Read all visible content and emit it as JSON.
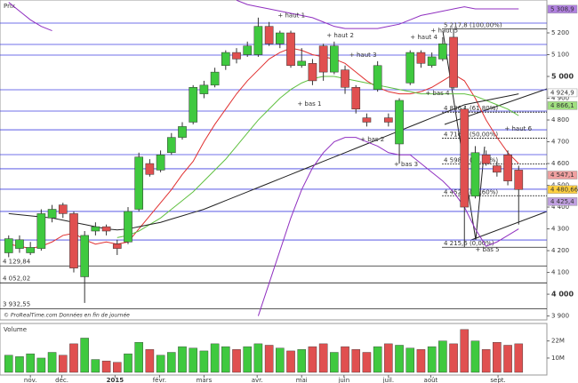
{
  "chart_data": [
    {
      "type": "candlestick",
      "title": "Prix",
      "footer": "© ProRealTime.com  Données en fin de journée",
      "up_color": "#3fc93f",
      "down_color": "#e05050",
      "xlim": [
        -0.8,
        49.6
      ],
      "ylim": [
        3882,
        5351
      ],
      "xticks": [
        {
          "value": 2.0,
          "label": "nov."
        },
        {
          "value": 4.9,
          "label": "déc."
        },
        {
          "value": 9.8,
          "label": "2015"
        },
        {
          "value": 13.9,
          "label": "févr."
        },
        {
          "value": 18.0,
          "label": "mars"
        },
        {
          "value": 22.9,
          "label": "avr."
        },
        {
          "value": 27.0,
          "label": "mai"
        },
        {
          "value": 30.9,
          "label": "juin"
        },
        {
          "value": 35.0,
          "label": "juil."
        },
        {
          "value": 38.9,
          "label": "août"
        },
        {
          "value": 45.1,
          "label": "sept."
        }
      ],
      "yticks": [
        {
          "value": 5200,
          "label": "5 200"
        },
        {
          "value": 5100,
          "label": "5 100"
        },
        {
          "value": 5000,
          "label": "5 000"
        },
        {
          "value": 4900,
          "label": "4 900"
        },
        {
          "value": 4800,
          "label": "4 800"
        },
        {
          "value": 4700,
          "label": "4 700"
        },
        {
          "value": 4600,
          "label": "4 600"
        },
        {
          "value": 4500,
          "label": "4 500"
        },
        {
          "value": 4400,
          "label": "4 400"
        },
        {
          "value": 4300,
          "label": "4 300"
        },
        {
          "value": 4200,
          "label": "4 200"
        },
        {
          "value": 4100,
          "label": "4 100"
        },
        {
          "value": 4000,
          "label": "4 000"
        },
        {
          "value": 3900,
          "label": "3 900"
        }
      ],
      "open": [
        4190,
        4210,
        4190,
        4210,
        4350,
        4410,
        4370,
        4080,
        4290,
        4310,
        4230,
        4240,
        4390,
        4600,
        4570,
        4650,
        4720,
        4790,
        4920,
        4960,
        5050,
        5110,
        5100,
        5100,
        5230,
        5150,
        5200,
        5050,
        5060,
        5140,
        5020,
        5030,
        4950,
        4810,
        4940,
        4810,
        4690,
        4970,
        5110,
        5050,
        5080,
        5180,
        4850,
        4450,
        4640,
        4590,
        4640,
        4570
      ],
      "high": [
        4270,
        4270,
        4240,
        4390,
        4410,
        4420,
        4380,
        4290,
        4330,
        4320,
        4250,
        4400,
        4650,
        4620,
        4660,
        4740,
        4790,
        4960,
        4980,
        5040,
        5120,
        5130,
        5160,
        5270,
        5250,
        5210,
        5210,
        5130,
        5080,
        5150,
        5160,
        5050,
        4960,
        4830,
        5070,
        4830,
        4900,
        5120,
        5120,
        5110,
        5180,
        5217.8,
        4860,
        4680,
        4660,
        4610,
        4660,
        4590
      ],
      "low": [
        4170,
        4190,
        4180,
        4200,
        4330,
        4350,
        4100,
        3960,
        4270,
        4270,
        4180,
        4230,
        4380,
        4540,
        4560,
        4640,
        4710,
        4780,
        4900,
        4950,
        5030,
        5060,
        5090,
        5090,
        5140,
        5130,
        5040,
        5040,
        4960,
        4980,
        5010,
        4920,
        4830,
        4770,
        4930,
        4770,
        4600,
        4960,
        5040,
        5040,
        5070,
        4940,
        4215.6,
        4440,
        4590,
        4540,
        4500,
        4320
      ],
      "close": [
        4255,
        4250,
        4215,
        4370,
        4390,
        4370,
        4120,
        4270,
        4310,
        4290,
        4210,
        4380,
        4630,
        4550,
        4640,
        4720,
        4770,
        4950,
        4960,
        5020,
        5110,
        5080,
        5140,
        5230,
        5150,
        5200,
        5050,
        5070,
        4980,
        5020,
        5140,
        4950,
        4850,
        4790,
        5050,
        4790,
        4890,
        5110,
        5060,
        5090,
        5150,
        4950,
        4400,
        4650,
        4600,
        4560,
        4520,
        4480.66
      ],
      "series": [
        {
          "color": "#e03030",
          "values": [
            4230,
            4220,
            4210,
            4220,
            4240,
            4270,
            4280,
            4250,
            4230,
            4240,
            4230,
            4240,
            4300,
            4360,
            4420,
            4480,
            4550,
            4610,
            4700,
            4780,
            4850,
            4920,
            4980,
            5030,
            5080,
            5110,
            5130,
            5120,
            5100,
            5090,
            5080,
            5060,
            5020,
            4980,
            4950,
            4930,
            4920,
            4920,
            4930,
            4950,
            4980,
            5010,
            4980,
            4900,
            4800,
            4720,
            4650,
            4600
          ]
        },
        {
          "color": "#60c040",
          "values": [
            null,
            null,
            null,
            null,
            null,
            null,
            null,
            null,
            null,
            null,
            4260,
            4270,
            4290,
            4320,
            4350,
            4390,
            4430,
            4470,
            4520,
            4570,
            4620,
            4680,
            4740,
            4800,
            4850,
            4900,
            4940,
            4970,
            4990,
            5000,
            5000,
            4990,
            4980,
            4970,
            4960,
            4950,
            4940,
            4930,
            4920,
            4920,
            4920,
            4920,
            4920,
            4910,
            4890,
            4870,
            4850,
            4820
          ]
        },
        {
          "color": "#222222",
          "values": [
            4370,
            4365,
            4360,
            4355,
            4350,
            4340,
            4330,
            4320,
            4310,
            4300,
            4295,
            4300,
            4310,
            4320,
            4330,
            4345,
            4360,
            4375,
            4390,
            4410,
            4430,
            4450,
            4470,
            4490,
            4510,
            4530,
            4550,
            4570,
            4590,
            4610,
            4630,
            4650,
            4670,
            4690,
            4710,
            4730,
            4750,
            4770,
            4790,
            4810,
            4830,
            4850,
            4870,
            4880,
            4890,
            4900,
            4910,
            4920
          ]
        },
        {
          "color": "#9030c0",
          "values": [
            5340,
            5300,
            5260,
            5230,
            5210,
            null,
            null,
            null,
            null,
            null,
            null,
            null,
            null,
            null,
            null,
            null,
            null,
            null,
            null,
            null,
            null,
            5350,
            5330,
            5320,
            5310,
            5300,
            5290,
            5280,
            5270,
            5250,
            5230,
            5220,
            5220,
            5220,
            5220,
            5230,
            5240,
            5260,
            5280,
            5290,
            5300,
            5310,
            5320,
            5310,
            5310,
            5310,
            5310,
            5310
          ]
        },
        {
          "color": "#9030c0",
          "values": [
            null,
            null,
            null,
            null,
            null,
            null,
            null,
            null,
            null,
            null,
            null,
            null,
            null,
            null,
            null,
            null,
            null,
            null,
            null,
            null,
            null,
            null,
            null,
            3900,
            4050,
            4200,
            4350,
            4480,
            4580,
            4650,
            4700,
            4720,
            4720,
            4700,
            4680,
            4650,
            4640,
            4640,
            4600,
            4560,
            4520,
            4470,
            4400,
            4300,
            4220,
            4240,
            4270,
            4300
          ]
        }
      ],
      "levels": [
        5245,
        5147,
        5098,
        4939,
        4841,
        4755,
        4641,
        4576,
        4482,
        4380,
        4249
      ],
      "supports": [
        {
          "value": 4129.84,
          "label": "4 129,84"
        },
        {
          "value": 4052.02,
          "label": "4 052,02"
        },
        {
          "value": 3932.55,
          "label": "3 932,55"
        }
      ],
      "fibonacci": [
        {
          "value": 5217.8,
          "label": "5 217,8 (100,00%)"
        },
        {
          "value": 4836.1,
          "label": "4 836,1 (61,80%)"
        },
        {
          "value": 4716.2,
          "label": "4 716,2 (50,00%)"
        },
        {
          "value": 4598.5,
          "label": "4 598,5 (38,20%)"
        },
        {
          "value": 4452.2,
          "label": "4 452,2 (23,60%)"
        },
        {
          "value": 4215.6,
          "label": "4 215,6 (0,00%)"
        }
      ],
      "markers": [
        {
          "value": 5308.9,
          "label": "5 308,9",
          "color": "#b080e0"
        },
        {
          "value": 4924.9,
          "label": "4 924,9",
          "color": "#ffffff"
        },
        {
          "value": 4866.1,
          "label": "4 866,1",
          "color": "#a0e080"
        },
        {
          "value": 4547.1,
          "label": "4 547,1",
          "color": "#f0a0a0"
        },
        {
          "value": 4480.66,
          "label": "4 480,66",
          "color": "#ffd040"
        },
        {
          "value": 4425.4,
          "label": "4 425,4",
          "color": "#c0a0e0"
        }
      ],
      "annotations": [
        {
          "label": "+ haut 1",
          "x": 24.8,
          "y": 5280
        },
        {
          "label": "+ haut 2",
          "x": 29.3,
          "y": 5188
        },
        {
          "label": "+ haut 3",
          "x": 31.4,
          "y": 5098
        },
        {
          "label": "+ haut 4",
          "x": 37.0,
          "y": 5180
        },
        {
          "label": "+ haut 5",
          "x": 38.9,
          "y": 5210
        },
        {
          "label": "+ haut 6",
          "x": 45.7,
          "y": 4760
        },
        {
          "label": "+ bas 1",
          "x": 26.6,
          "y": 4873
        },
        {
          "label": "+ bas 2",
          "x": 32.4,
          "y": 4710
        },
        {
          "label": "+ bas 3",
          "x": 35.5,
          "y": 4596
        },
        {
          "label": "+ bas 4",
          "x": 38.4,
          "y": 4922
        },
        {
          "label": "+ bas 5",
          "x": 43.0,
          "y": 4205
        }
      ]
    },
    {
      "type": "volume",
      "title": "Volume",
      "ylim": [
        0,
        33
      ],
      "yticks": [
        {
          "value": 22,
          "label": "22M"
        },
        {
          "value": 10,
          "label": "10M"
        }
      ],
      "values": [
        12,
        11,
        13,
        10,
        14,
        12,
        20,
        24,
        9,
        8,
        7,
        13,
        21,
        16,
        12,
        14,
        18,
        17,
        15,
        20,
        18,
        16,
        18,
        20,
        19,
        17,
        15,
        16,
        18,
        20,
        14,
        18,
        16,
        14,
        18,
        20,
        19,
        17,
        16,
        18,
        22,
        20,
        30,
        22,
        16,
        21,
        19,
        20
      ]
    }
  ]
}
